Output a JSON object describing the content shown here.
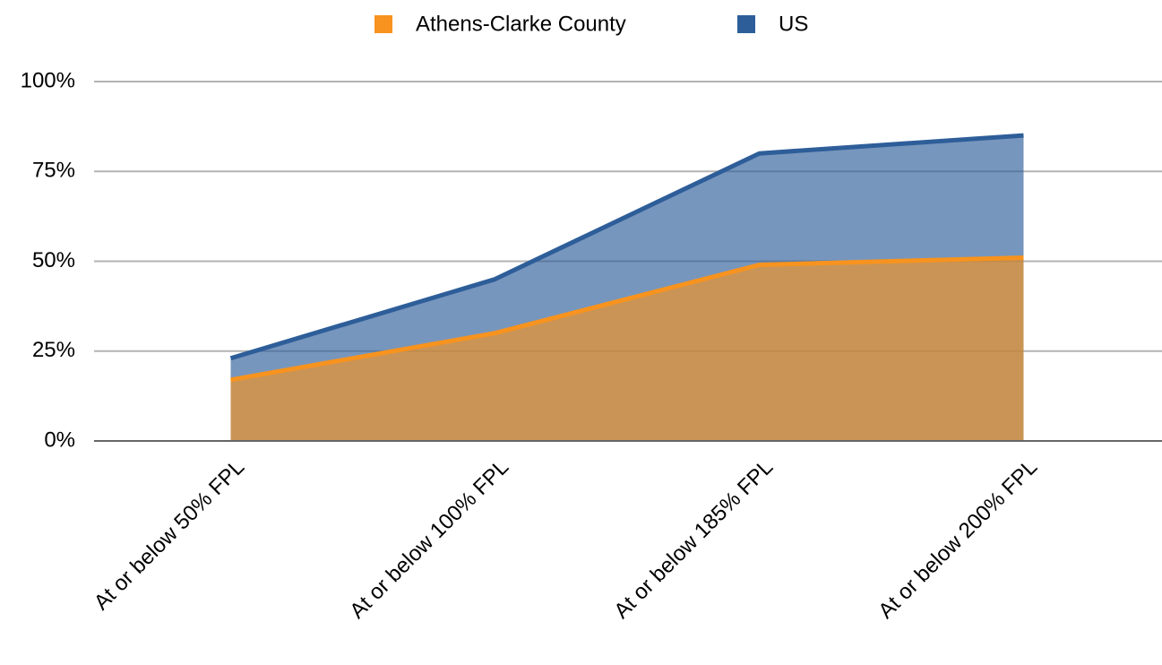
{
  "chart_data": {
    "type": "area",
    "categories": [
      "At or below 50% FPL",
      "At or below 100% FPL",
      "At or below 185% FPL",
      "At or below 200% FPL"
    ],
    "series": [
      {
        "name": "US",
        "color": "#2e5e99",
        "values": [
          23,
          45,
          80,
          85
        ]
      },
      {
        "name": "Athens-Clarke County",
        "color": "#f7931e",
        "values": [
          17,
          30,
          49,
          51
        ]
      }
    ],
    "legend_order": [
      "Athens-Clarke County",
      "US"
    ],
    "ylim": [
      0,
      100
    ],
    "yticks": [
      {
        "value": 0,
        "label": "0%"
      },
      {
        "value": 25,
        "label": "25%"
      },
      {
        "value": 50,
        "label": "50%"
      },
      {
        "value": 75,
        "label": "75%"
      },
      {
        "value": 100,
        "label": "100%"
      }
    ],
    "grid": true,
    "legend": "top"
  }
}
